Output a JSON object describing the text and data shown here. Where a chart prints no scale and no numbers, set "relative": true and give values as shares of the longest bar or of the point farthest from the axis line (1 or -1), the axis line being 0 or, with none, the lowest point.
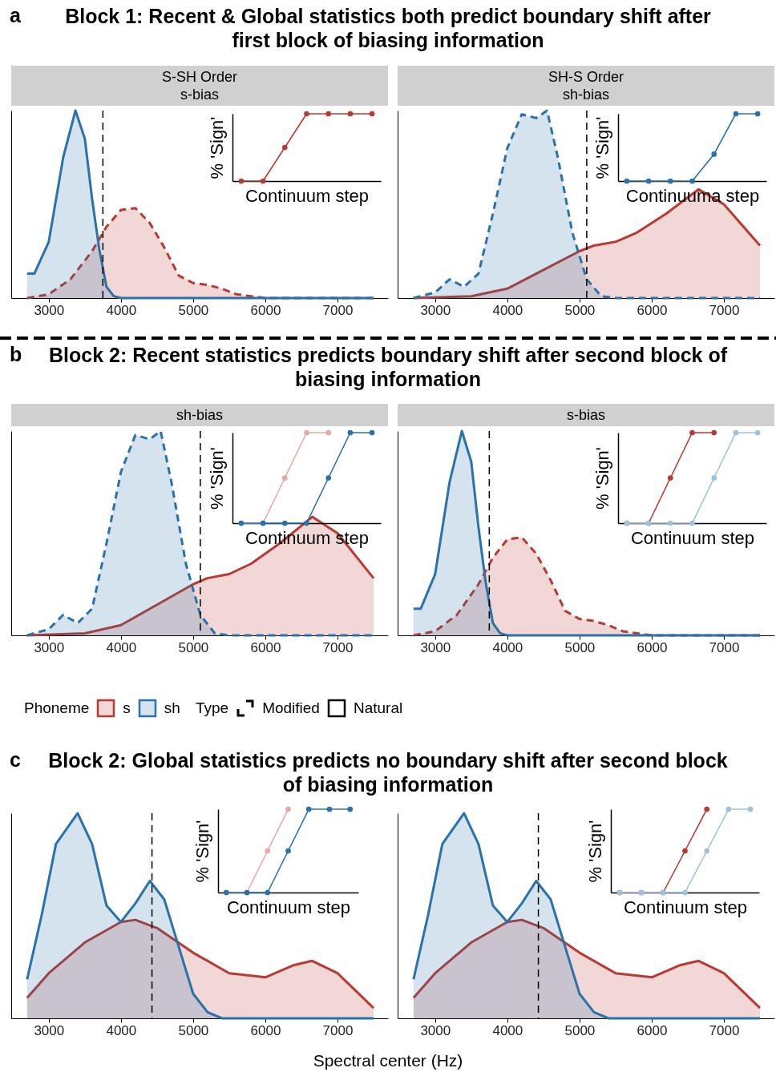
{
  "chart_data": [
    {
      "type": "area",
      "title": "Block 1: Recent & Global statistics both predict boundary shift after first block of biasing information",
      "subtitle": "S-SH Order\ns-bias",
      "annotations": [
        "a"
      ],
      "relative": true,
      "tick_labels": "x",
      "xlim": [
        2480,
        7700
      ],
      "xticks": [
        3000,
        4000,
        5000,
        6000,
        7000
      ],
      "ref_lines": [
        {
          "axis": "x",
          "value": 3750
        }
      ],
      "series": [
        {
          "color": "#b83a32",
          "line_style": "dashed",
          "x": [
            2700,
            3000,
            3300,
            3600,
            3800,
            4000,
            4200,
            4400,
            4600,
            4800,
            5000,
            5200,
            5400,
            5600,
            5800,
            6000,
            7500
          ],
          "values": [
            0,
            0.02,
            0.1,
            0.25,
            0.38,
            0.47,
            0.48,
            0.4,
            0.27,
            0.12,
            0.08,
            0.07,
            0.05,
            0.02,
            0.01,
            0,
            0
          ]
        },
        {
          "color": "#2a72aa",
          "line_style": "solid",
          "x": [
            2700,
            2800,
            3000,
            3200,
            3370,
            3500,
            3600,
            3700,
            3800,
            3900,
            4000,
            7500
          ],
          "values": [
            0.13,
            0.13,
            0.3,
            0.75,
            1,
            0.85,
            0.53,
            0.26,
            0.06,
            0.01,
            0,
            0
          ]
        }
      ]
    },
    {
      "type": "line",
      "xlabel": "Continuum step",
      "ylabel": "% 'Sign'",
      "relative": true,
      "tick_labels": false,
      "marker": "circle",
      "categories": [
        null,
        null,
        null,
        null,
        null,
        null,
        null
      ],
      "series": [
        {
          "color": "#b83a32",
          "values": [
            0,
            0,
            0.5,
            1,
            1,
            1,
            1
          ]
        }
      ]
    },
    {
      "type": "area",
      "subtitle": "SH-S Order\nsh-bias",
      "relative": true,
      "tick_labels": "x",
      "xlim": [
        2480,
        7700
      ],
      "xticks": [
        3000,
        4000,
        5000,
        6000,
        7000
      ],
      "ref_lines": [
        {
          "axis": "x",
          "value": 5100
        }
      ],
      "series": [
        {
          "color": "#b83a32",
          "line_style": "solid",
          "x": [
            2700,
            3500,
            4000,
            4500,
            5000,
            5200,
            5500,
            5800,
            6200,
            6650,
            7000,
            7500
          ],
          "values": [
            0,
            0.01,
            0.05,
            0.15,
            0.25,
            0.28,
            0.3,
            0.35,
            0.45,
            0.58,
            0.5,
            0.28
          ]
        },
        {
          "color": "#2a72aa",
          "line_style": "dashed",
          "x": [
            2700,
            3000,
            3200,
            3400,
            3600,
            3800,
            4000,
            4200,
            4400,
            4550,
            4700,
            4900,
            5100,
            5300,
            5500,
            7500
          ],
          "values": [
            0,
            0.03,
            0.1,
            0.06,
            0.13,
            0.45,
            0.8,
            0.98,
            0.96,
            1,
            0.75,
            0.35,
            0.1,
            0.01,
            0,
            0
          ]
        }
      ]
    },
    {
      "type": "line",
      "xlabel": "Continuuma step",
      "ylabel": "% 'Sign'",
      "relative": true,
      "tick_labels": false,
      "marker": "circle",
      "categories": [
        null,
        null,
        null,
        null,
        null,
        null,
        null
      ],
      "series": [
        {
          "color": "#2a72aa",
          "values": [
            0,
            0,
            0,
            0,
            0.4,
            1,
            1
          ]
        }
      ]
    },
    {
      "type": "area",
      "title": "Block 2: Recent statistics predicts boundary shift after second block of biasing information",
      "subtitle": "sh-bias",
      "annotations": [
        "b"
      ],
      "relative": true,
      "tick_labels": "x",
      "xlim": [
        2480,
        7700
      ],
      "xticks": [
        3000,
        4000,
        5000,
        6000,
        7000
      ],
      "ref_lines": [
        {
          "axis": "x",
          "value": 5100
        }
      ],
      "series": [
        {
          "color": "#b83a32",
          "line_style": "solid",
          "x": [
            2700,
            3500,
            4000,
            4500,
            5000,
            5200,
            5500,
            5800,
            6200,
            6650,
            7000,
            7500
          ],
          "values": [
            0,
            0.01,
            0.05,
            0.15,
            0.25,
            0.28,
            0.3,
            0.35,
            0.45,
            0.58,
            0.5,
            0.28
          ]
        },
        {
          "color": "#2a72aa",
          "line_style": "dashed",
          "x": [
            2700,
            3000,
            3200,
            3400,
            3600,
            3800,
            4000,
            4200,
            4400,
            4550,
            4700,
            4900,
            5100,
            5300,
            5500,
            7500
          ],
          "values": [
            0,
            0.03,
            0.1,
            0.06,
            0.13,
            0.45,
            0.8,
            0.98,
            0.96,
            1,
            0.75,
            0.35,
            0.1,
            0.01,
            0,
            0
          ]
        }
      ]
    },
    {
      "type": "line",
      "xlabel": "Continuum step",
      "ylabel": "% 'Sign'",
      "relative": true,
      "tick_labels": false,
      "marker": "circle",
      "categories": [
        null,
        null,
        null,
        null,
        null,
        null,
        null
      ],
      "series": [
        {
          "color": "#e8a9a5",
          "values": [
            0,
            0,
            0.5,
            1,
            1,
            null,
            null
          ]
        },
        {
          "color": "#2a72aa",
          "values": [
            0,
            0,
            0,
            0,
            0.5,
            1,
            1
          ]
        }
      ]
    },
    {
      "type": "area",
      "subtitle": "s-bias",
      "relative": true,
      "tick_labels": "x",
      "xlim": [
        2480,
        7700
      ],
      "xticks": [
        3000,
        4000,
        5000,
        6000,
        7000
      ],
      "ref_lines": [
        {
          "axis": "x",
          "value": 3750
        }
      ],
      "series": [
        {
          "color": "#b83a32",
          "line_style": "dashed",
          "x": [
            2700,
            3000,
            3300,
            3600,
            3800,
            4000,
            4200,
            4400,
            4600,
            4800,
            5000,
            5200,
            5400,
            5600,
            5800,
            6000,
            7500
          ],
          "values": [
            0,
            0.02,
            0.1,
            0.25,
            0.38,
            0.47,
            0.48,
            0.4,
            0.27,
            0.12,
            0.08,
            0.07,
            0.05,
            0.02,
            0.01,
            0,
            0
          ]
        },
        {
          "color": "#2a72aa",
          "line_style": "solid",
          "x": [
            2700,
            2800,
            3000,
            3200,
            3370,
            3500,
            3600,
            3700,
            3800,
            3900,
            4000,
            7500
          ],
          "values": [
            0.13,
            0.13,
            0.3,
            0.75,
            1,
            0.85,
            0.53,
            0.26,
            0.06,
            0.01,
            0,
            0
          ]
        }
      ]
    },
    {
      "type": "line",
      "xlabel": "Continuum step",
      "ylabel": "% 'Sign'",
      "relative": true,
      "tick_labels": false,
      "marker": "circle",
      "categories": [
        null,
        null,
        null,
        null,
        null,
        null,
        null
      ],
      "series": [
        {
          "color": "#b83a32",
          "values": [
            0,
            0,
            0.5,
            1,
            1,
            null,
            null
          ]
        },
        {
          "color": "#9dc3dc",
          "values": [
            0,
            0,
            0,
            0,
            0.5,
            1,
            1
          ]
        }
      ]
    },
    {
      "type": "other",
      "annotations": [
        "Phoneme",
        "s",
        "sh",
        "Type",
        "Modified",
        "Natural"
      ],
      "colors": [
        "#b83a32",
        "#2a72aa"
      ]
    },
    {
      "type": "area",
      "title": "Block 2: Global statistics predicts no boundary shift after second block of biasing information",
      "xlabel": "Spectral center (Hz)",
      "annotations": [
        "c"
      ],
      "relative": true,
      "tick_labels": "x",
      "xlim": [
        2480,
        7700
      ],
      "xticks": [
        3000,
        4000,
        5000,
        6000,
        7000
      ],
      "ref_lines": [
        {
          "axis": "x",
          "value": 4430
        }
      ],
      "series": [
        {
          "color": "#b83a32",
          "line_style": "solid",
          "x": [
            2700,
            3000,
            3500,
            4000,
            4200,
            4500,
            5000,
            5500,
            6000,
            6400,
            6650,
            7000,
            7500
          ],
          "values": [
            0.1,
            0.22,
            0.37,
            0.47,
            0.48,
            0.44,
            0.32,
            0.22,
            0.2,
            0.26,
            0.28,
            0.22,
            0.05
          ]
        },
        {
          "color": "#2a72aa",
          "line_style": "solid",
          "x": [
            2700,
            2900,
            3100,
            3400,
            3600,
            3800,
            4000,
            4200,
            4400,
            4600,
            4800,
            5000,
            5200,
            5400,
            7500
          ],
          "values": [
            0.19,
            0.5,
            0.85,
            1,
            0.85,
            0.55,
            0.47,
            0.56,
            0.67,
            0.58,
            0.35,
            0.12,
            0.03,
            0,
            0
          ]
        }
      ]
    },
    {
      "type": "line",
      "xlabel": "Continuum step",
      "ylabel": "% 'Sign'",
      "relative": true,
      "tick_labels": false,
      "marker": "circle",
      "categories": [
        null,
        null,
        null,
        null,
        null,
        null,
        null
      ],
      "series": [
        {
          "color": "#e8a9a5",
          "values": [
            0,
            0,
            0.5,
            1,
            null,
            null,
            null
          ]
        },
        {
          "color": "#2a72aa",
          "values": [
            0,
            0,
            0,
            0.5,
            1,
            1,
            1
          ]
        }
      ]
    },
    {
      "type": "area",
      "relative": true,
      "tick_labels": "x",
      "xlim": [
        2480,
        7700
      ],
      "xticks": [
        3000,
        4000,
        5000,
        6000,
        7000
      ],
      "ref_lines": [
        {
          "axis": "x",
          "value": 4430
        }
      ],
      "series": [
        {
          "color": "#b83a32",
          "line_style": "solid",
          "x": [
            2700,
            3000,
            3500,
            4000,
            4200,
            4500,
            5000,
            5500,
            6000,
            6400,
            6650,
            7000,
            7500
          ],
          "values": [
            0.1,
            0.22,
            0.37,
            0.47,
            0.48,
            0.44,
            0.32,
            0.22,
            0.2,
            0.26,
            0.28,
            0.22,
            0.05
          ]
        },
        {
          "color": "#2a72aa",
          "line_style": "solid",
          "x": [
            2700,
            2900,
            3100,
            3400,
            3600,
            3800,
            4000,
            4200,
            4400,
            4600,
            4800,
            5000,
            5200,
            5400,
            7500
          ],
          "values": [
            0.19,
            0.5,
            0.85,
            1,
            0.85,
            0.55,
            0.47,
            0.56,
            0.67,
            0.58,
            0.35,
            0.12,
            0.03,
            0,
            0
          ]
        }
      ]
    },
    {
      "type": "line",
      "xlabel": "Continuum step",
      "ylabel": "% 'Sign'",
      "relative": true,
      "tick_labels": false,
      "marker": "circle",
      "categories": [
        null,
        null,
        null,
        null,
        null,
        null,
        null
      ],
      "series": [
        {
          "color": "#b83a32",
          "values": [
            0,
            0,
            0,
            0.5,
            1,
            null,
            null
          ]
        },
        {
          "color": "#9dc3dc",
          "values": [
            0,
            0,
            0,
            0,
            0.5,
            1,
            1
          ]
        }
      ]
    }
  ]
}
